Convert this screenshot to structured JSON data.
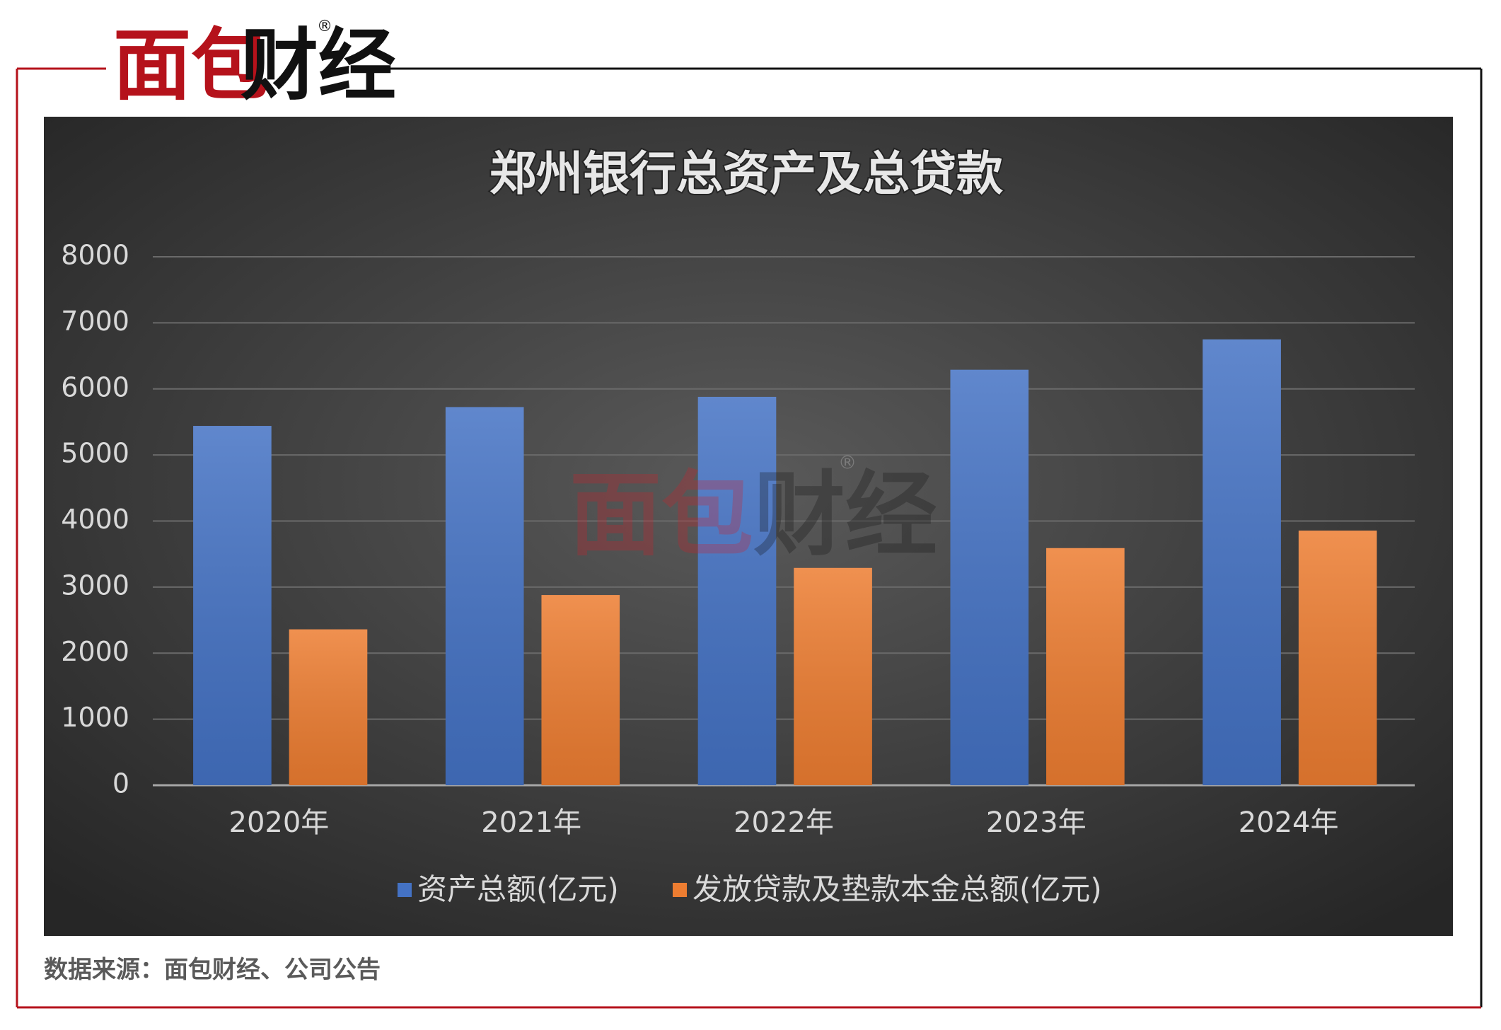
{
  "brand": {
    "part1": "面包",
    "part2": "财经",
    "mark": "®"
  },
  "chart_data": {
    "type": "bar",
    "title": "郑州银行总资产及总贷款",
    "categories": [
      "2020年",
      "2021年",
      "2022年",
      "2023年",
      "2024年"
    ],
    "series": [
      {
        "name": "资产总额(亿元)",
        "color": "#4472c4",
        "values": [
          5440,
          5725,
          5880,
          6290,
          6750
        ]
      },
      {
        "name": "发放贷款及垫款本金总额(亿元)",
        "color": "#ed7d31",
        "values": [
          2360,
          2880,
          3290,
          3590,
          3855
        ]
      }
    ],
    "ylim": [
      0,
      8000
    ],
    "yticks": [
      0,
      1000,
      2000,
      3000,
      4000,
      5000,
      6000,
      7000,
      8000
    ],
    "grid": true,
    "legend": "bottom"
  },
  "source": "数据来源：面包财经、公司公告"
}
